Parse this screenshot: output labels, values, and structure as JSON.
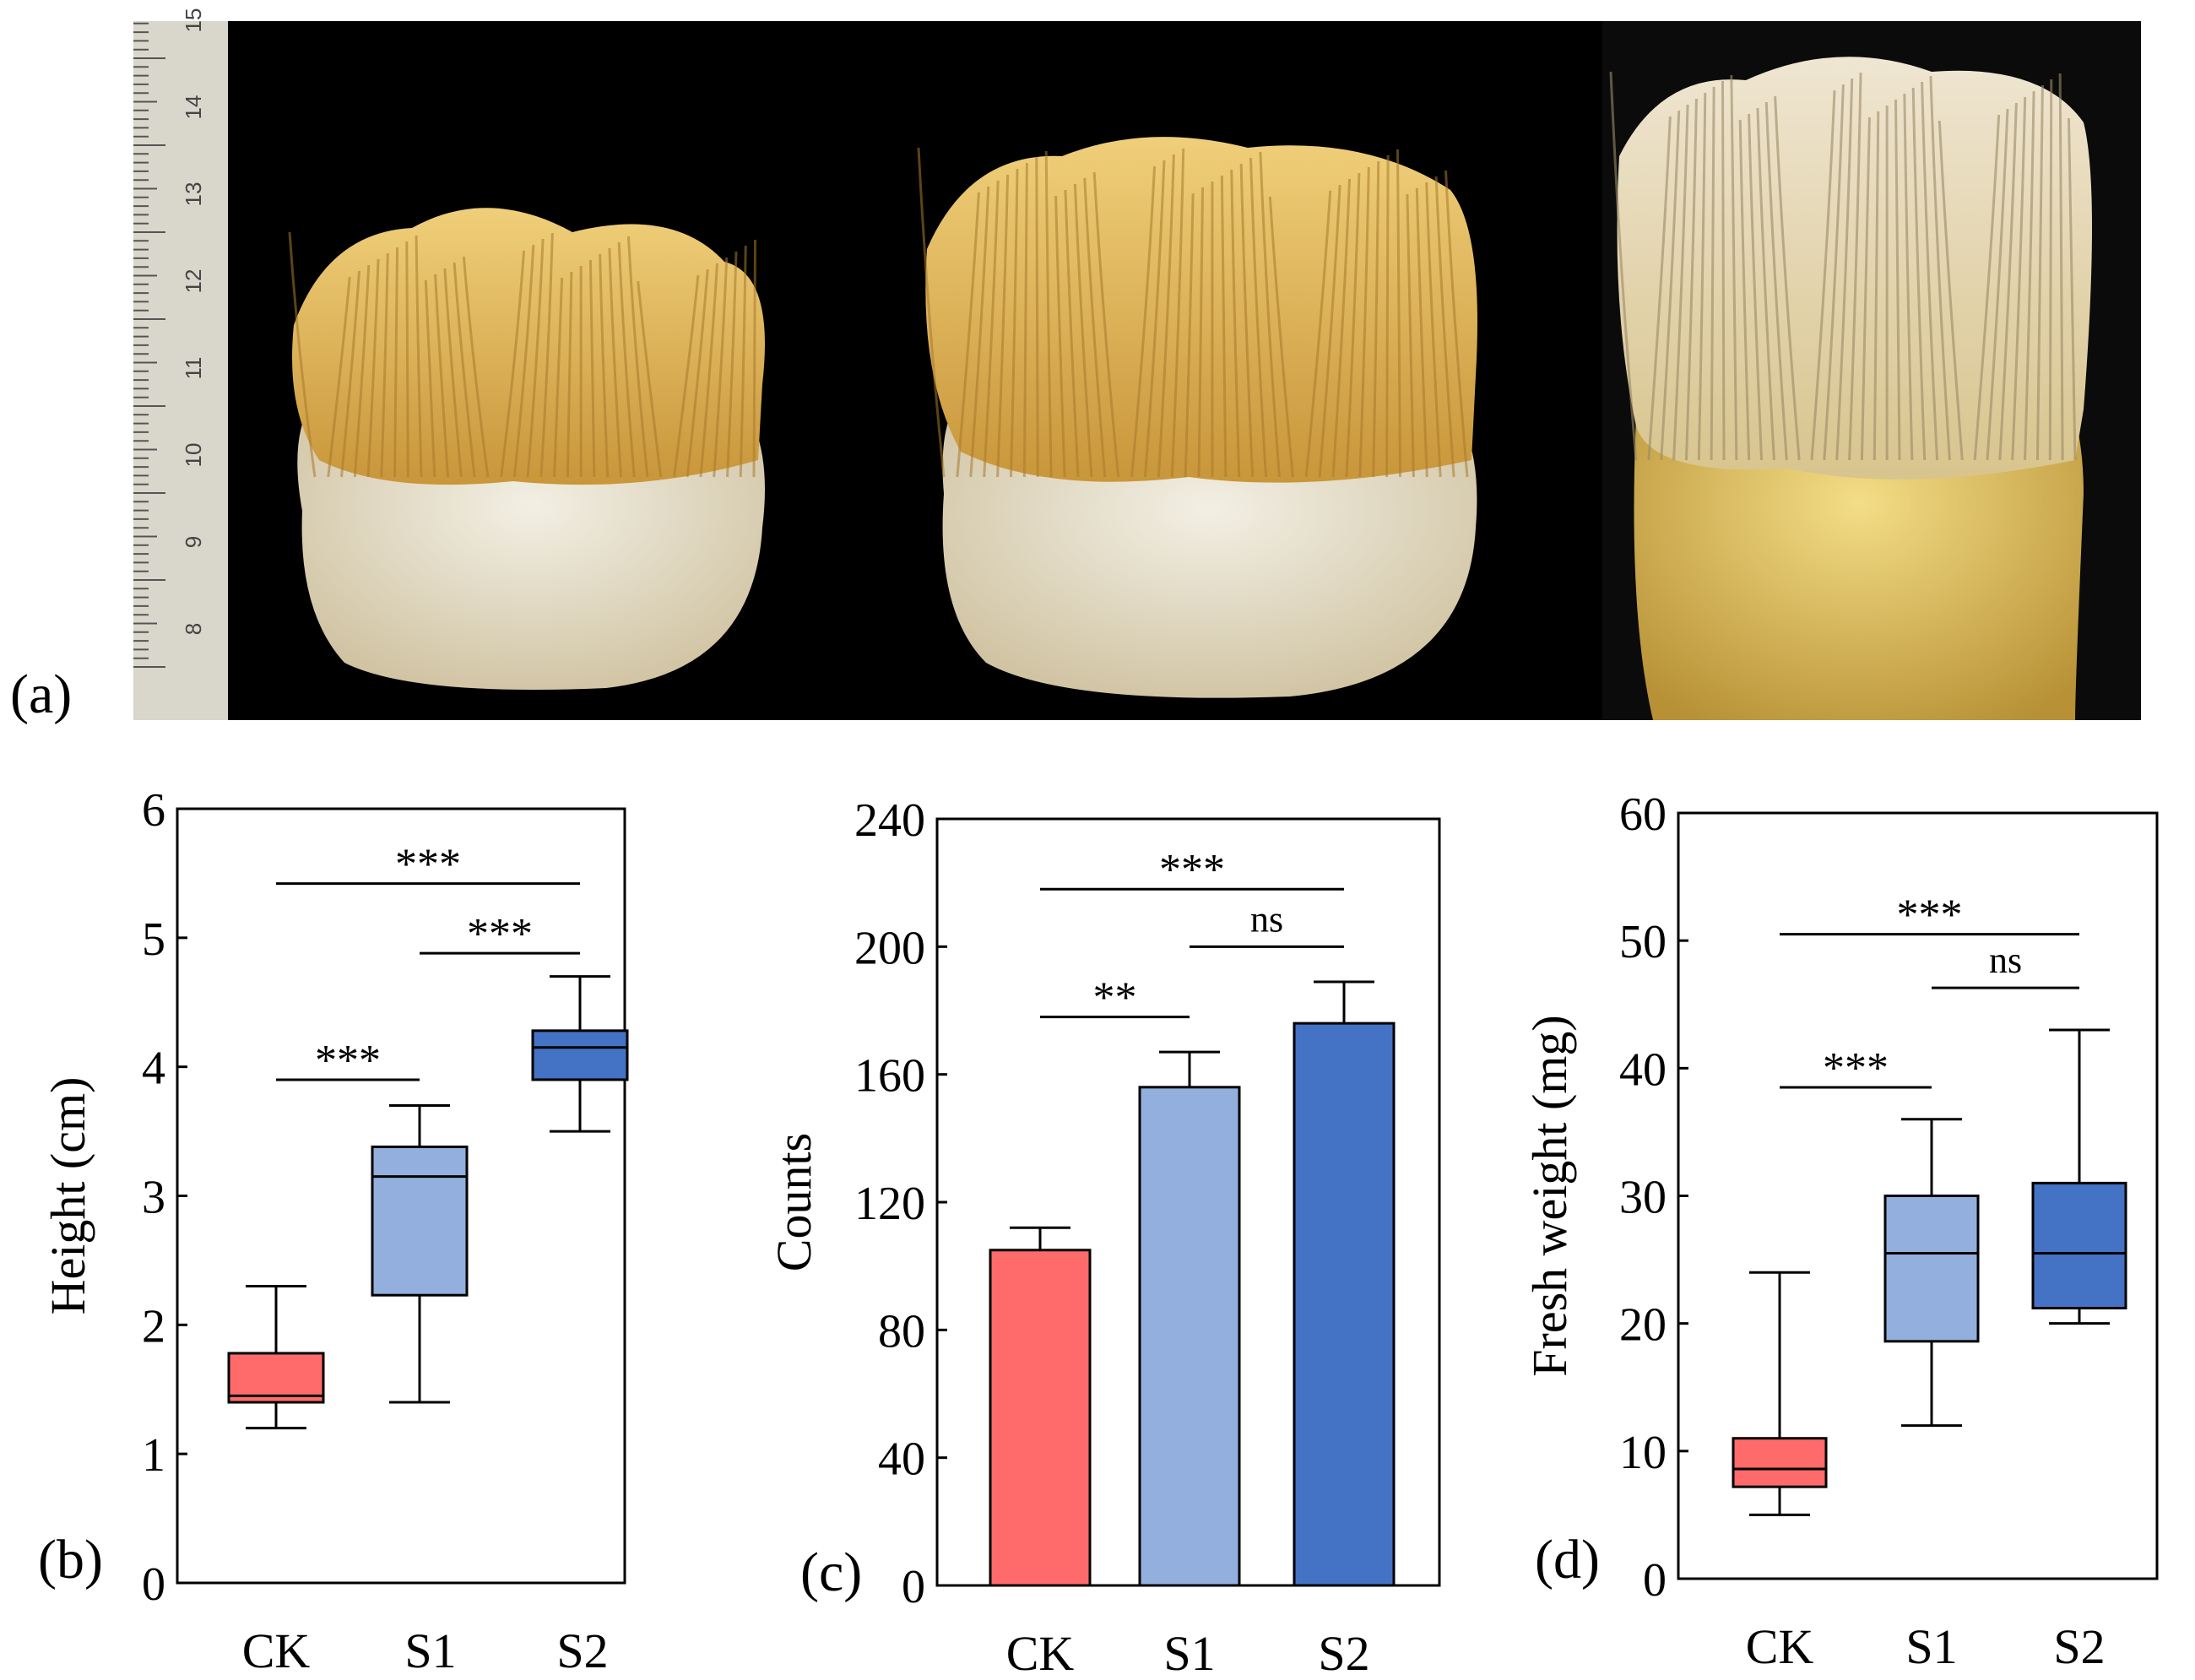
{
  "panels": {
    "a": {
      "label": "(a)"
    },
    "b": {
      "label": "(b)"
    },
    "c": {
      "label": "(c)"
    },
    "d": {
      "label": "(d)"
    }
  },
  "photo": {
    "ruler_ticks": [
      "8",
      "9",
      "10",
      "11",
      "12",
      "13",
      "14",
      "15"
    ],
    "colors": {
      "background": "#000000",
      "ruler": "#d9d6cc",
      "hyphae": "#e0b24f",
      "base": "#ece6d6"
    }
  },
  "colors": {
    "CK": "#ff6b6b",
    "S1": "#93afde",
    "S2": "#4472c4"
  },
  "chart_data": [
    {
      "id": "b",
      "type": "box",
      "ylabel": "Height (cm)",
      "categories": [
        "CK",
        "S1",
        "S2"
      ],
      "ylim": [
        0,
        6
      ],
      "yticks": [
        "0",
        "1",
        "2",
        "3",
        "4",
        "5",
        "6"
      ],
      "boxes": [
        {
          "name": "CK",
          "min": 1.2,
          "q1": 1.4,
          "median": 1.45,
          "q3": 1.78,
          "max": 2.3
        },
        {
          "name": "S1",
          "min": 1.4,
          "q1": 2.23,
          "median": 3.15,
          "q3": 3.38,
          "max": 3.7
        },
        {
          "name": "S2",
          "min": 3.5,
          "q1": 3.9,
          "median": 4.15,
          "q3": 4.28,
          "max": 4.7
        }
      ],
      "significance": [
        {
          "from": "CK",
          "to": "S2",
          "y": 5.42,
          "label": "***"
        },
        {
          "from": "S1",
          "to": "S2",
          "y": 4.88,
          "label": "***"
        },
        {
          "from": "CK",
          "to": "S1",
          "y": 3.9,
          "label": "***"
        }
      ]
    },
    {
      "id": "c",
      "type": "bar",
      "ylabel": "Counts",
      "categories": [
        "CK",
        "S1",
        "S2"
      ],
      "ylim": [
        0,
        240
      ],
      "yticks": [
        "0",
        "40",
        "80",
        "120",
        "160",
        "200",
        "240"
      ],
      "values": [
        105,
        156,
        176
      ],
      "errors": [
        7,
        11,
        13
      ],
      "significance": [
        {
          "from": "CK",
          "to": "S2",
          "y": 218,
          "label": "***"
        },
        {
          "from": "S1",
          "to": "S2",
          "y": 200,
          "label": "ns"
        },
        {
          "from": "CK",
          "to": "S1",
          "y": 178,
          "label": "**"
        }
      ]
    },
    {
      "id": "d",
      "type": "box",
      "ylabel": "Fresh weight (mg)",
      "categories": [
        "CK",
        "S1",
        "S2"
      ],
      "ylim": [
        0,
        60
      ],
      "yticks": [
        "0",
        "10",
        "20",
        "30",
        "40",
        "50",
        "60"
      ],
      "boxes": [
        {
          "name": "CK",
          "min": 5,
          "q1": 7.2,
          "median": 8.6,
          "q3": 11,
          "max": 24
        },
        {
          "name": "S1",
          "min": 12,
          "q1": 18.6,
          "median": 25.5,
          "q3": 30,
          "max": 36
        },
        {
          "name": "S2",
          "min": 20,
          "q1": 21.2,
          "median": 25.5,
          "q3": 31,
          "max": 43
        }
      ],
      "significance": [
        {
          "from": "CK",
          "to": "S2",
          "y": 50.5,
          "label": "***"
        },
        {
          "from": "S1",
          "to": "S2",
          "y": 46.3,
          "label": "ns"
        },
        {
          "from": "CK",
          "to": "S1",
          "y": 38.5,
          "label": "***"
        }
      ]
    }
  ]
}
